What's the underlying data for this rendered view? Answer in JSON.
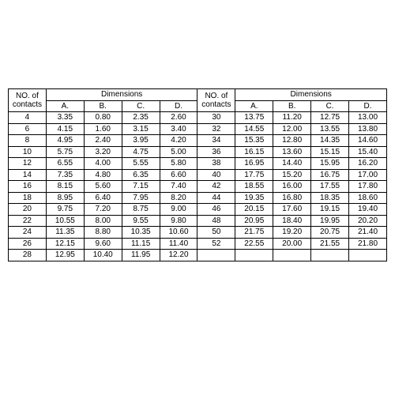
{
  "table": {
    "type": "table",
    "background_color": "#ffffff",
    "border_color": "#000000",
    "text_color": "#000000",
    "fontsize": 10,
    "header_no_of_contacts": "NO. of\ncontacts",
    "header_dimensions": "Dimensions",
    "header_cols": [
      "A.",
      "B.",
      "C.",
      "D."
    ],
    "left_rows": [
      {
        "n": "4",
        "a": "3.35",
        "b": "0.80",
        "c": "2.35",
        "d": "2.60"
      },
      {
        "n": "6",
        "a": "4.15",
        "b": "1.60",
        "c": "3.15",
        "d": "3.40"
      },
      {
        "n": "8",
        "a": "4.95",
        "b": "2.40",
        "c": "3.95",
        "d": "4.20"
      },
      {
        "n": "10",
        "a": "5.75",
        "b": "3.20",
        "c": "4.75",
        "d": "5.00"
      },
      {
        "n": "12",
        "a": "6.55",
        "b": "4.00",
        "c": "5.55",
        "d": "5.80"
      },
      {
        "n": "14",
        "a": "7.35",
        "b": "4.80",
        "c": "6.35",
        "d": "6.60"
      },
      {
        "n": "16",
        "a": "8.15",
        "b": "5.60",
        "c": "7.15",
        "d": "7.40"
      },
      {
        "n": "18",
        "a": "8.95",
        "b": "6.40",
        "c": "7.95",
        "d": "8.20"
      },
      {
        "n": "20",
        "a": "9.75",
        "b": "7.20",
        "c": "8.75",
        "d": "9.00"
      },
      {
        "n": "22",
        "a": "10.55",
        "b": "8.00",
        "c": "9.55",
        "d": "9.80"
      },
      {
        "n": "24",
        "a": "11.35",
        "b": "8.80",
        "c": "10.35",
        "d": "10.60"
      },
      {
        "n": "26",
        "a": "12.15",
        "b": "9.60",
        "c": "11.15",
        "d": "11.40"
      },
      {
        "n": "28",
        "a": "12.95",
        "b": "10.40",
        "c": "11.95",
        "d": "12.20"
      }
    ],
    "right_rows": [
      {
        "n": "30",
        "a": "13.75",
        "b": "11.20",
        "c": "12.75",
        "d": "13.00"
      },
      {
        "n": "32",
        "a": "14.55",
        "b": "12.00",
        "c": "13.55",
        "d": "13.80"
      },
      {
        "n": "34",
        "a": "15.35",
        "b": "12.80",
        "c": "14.35",
        "d": "14.60"
      },
      {
        "n": "36",
        "a": "16.15",
        "b": "13.60",
        "c": "15.15",
        "d": "15.40"
      },
      {
        "n": "38",
        "a": "16.95",
        "b": "14.40",
        "c": "15.95",
        "d": "16.20"
      },
      {
        "n": "40",
        "a": "17.75",
        "b": "15.20",
        "c": "16.75",
        "d": "17.00"
      },
      {
        "n": "42",
        "a": "18.55",
        "b": "16.00",
        "c": "17.55",
        "d": "17.80"
      },
      {
        "n": "44",
        "a": "19.35",
        "b": "16.80",
        "c": "18.35",
        "d": "18.60"
      },
      {
        "n": "46",
        "a": "20.15",
        "b": "17.60",
        "c": "19.15",
        "d": "19.40"
      },
      {
        "n": "48",
        "a": "20.95",
        "b": "18.40",
        "c": "19.95",
        "d": "20.20"
      },
      {
        "n": "50",
        "a": "21.75",
        "b": "19.20",
        "c": "20.75",
        "d": "21.40"
      },
      {
        "n": "52",
        "a": "22.55",
        "b": "20.00",
        "c": "21.55",
        "d": "21.80"
      }
    ]
  }
}
